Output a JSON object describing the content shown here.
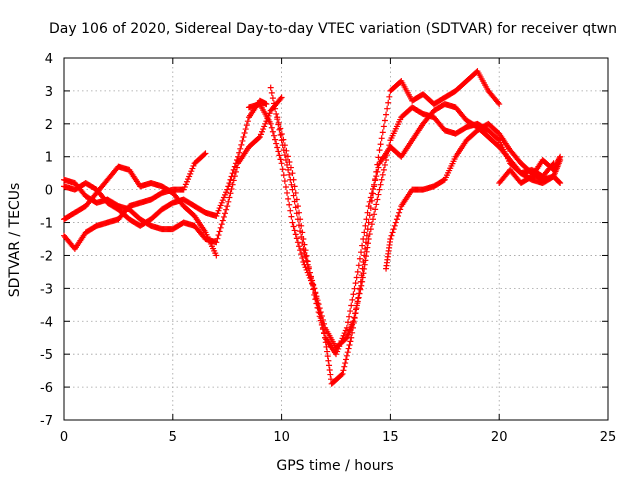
{
  "chart_data": {
    "type": "scatter",
    "title": "Day 106 of 2020, Sidereal Day-to-day VTEC variation (SDTVAR) for receiver qtwn",
    "xlabel": "GPS time / hours",
    "ylabel": "SDTVAR / TECUs",
    "xlim": [
      0,
      25
    ],
    "ylim": [
      -7,
      4
    ],
    "x_ticks": [
      "0",
      "5",
      "10",
      "15",
      "20",
      "25"
    ],
    "y_ticks": [
      "4",
      "3",
      "2",
      "1",
      "0",
      "-1",
      "-2",
      "-3",
      "-4",
      "-5",
      "-6",
      "-7"
    ],
    "grid": true,
    "marker": "+",
    "color": "#ff0000",
    "series": [
      {
        "x": [
          0,
          0.5,
          1,
          1.5,
          2,
          2.5,
          3,
          3.5,
          4,
          4.5,
          5,
          5.5,
          6,
          6.5,
          7,
          7.5,
          8,
          8.5,
          9,
          9.5,
          10
        ],
        "y": [
          0.3,
          0.2,
          -0.2,
          -0.4,
          -0.3,
          -0.5,
          -0.6,
          -0.9,
          -1.1,
          -1.2,
          -1.2,
          -1.0,
          -1.1,
          -1.5,
          -1.6,
          -0.5,
          0.8,
          1.3,
          1.6,
          2.4,
          2.8
        ]
      },
      {
        "x": [
          0,
          0.5,
          1,
          1.5,
          2,
          2.5,
          3,
          3.5,
          4,
          4.5,
          5,
          5.5,
          6,
          6.5
        ],
        "y": [
          -1.4,
          -1.8,
          -1.3,
          -1.1,
          -1.0,
          -0.9,
          -0.5,
          -0.4,
          -0.3,
          -0.1,
          0.0,
          0.0,
          0.8,
          1.1
        ]
      },
      {
        "x": [
          0,
          0.5,
          1,
          1.5,
          2,
          2.5,
          3,
          3.5,
          4,
          4.5,
          5,
          5.5,
          6,
          6.5,
          7
        ],
        "y": [
          -0.9,
          -0.7,
          -0.5,
          -0.1,
          0.3,
          0.7,
          0.6,
          0.1,
          0.2,
          0.1,
          -0.1,
          -0.5,
          -0.8,
          -1.3,
          -2.0
        ]
      },
      {
        "x": [
          0,
          0.5,
          1,
          1.5,
          2,
          2.5,
          3,
          3.5,
          4,
          4.5,
          5,
          5.5,
          6,
          6.5,
          7,
          7.5,
          8,
          8.5,
          9,
          9.3
        ],
        "y": [
          0.1,
          0.0,
          0.2,
          0.0,
          -0.4,
          -0.6,
          -0.9,
          -1.1,
          -0.9,
          -0.6,
          -0.4,
          -0.3,
          -0.5,
          -0.7,
          -0.8,
          0.0,
          1.0,
          2.2,
          2.7,
          2.6
        ]
      },
      {
        "x": [
          8.5,
          9,
          9.5,
          10,
          10.5,
          11,
          11.5,
          12,
          12.3,
          12.8,
          13.2,
          13.6,
          14,
          14.5,
          15,
          15.5,
          16,
          16.5,
          17,
          17.5,
          18,
          18.5,
          19,
          19.5,
          20
        ],
        "y": [
          2.5,
          2.6,
          2.0,
          0.8,
          -1.0,
          -2.2,
          -3.0,
          -4.5,
          -5.9,
          -5.6,
          -4.5,
          -3.0,
          -1.0,
          1.2,
          3.0,
          3.3,
          2.7,
          2.9,
          2.6,
          2.8,
          3.0,
          3.3,
          3.6,
          3.0,
          2.6
        ]
      },
      {
        "x": [
          9.5,
          10,
          10.5,
          11,
          11.5,
          12,
          12.5,
          13,
          13.3,
          13.7,
          14,
          14.5,
          15,
          15.5,
          16,
          16.5,
          17,
          17.5,
          18,
          18.5,
          19,
          19.5,
          20,
          20.5,
          21,
          21.5,
          22,
          22.5
        ],
        "y": [
          3.1,
          1.5,
          0.0,
          -1.8,
          -3.0,
          -4.2,
          -4.8,
          -4.5,
          -4.0,
          -2.8,
          -1.5,
          0.0,
          1.5,
          2.2,
          2.5,
          2.3,
          2.2,
          1.8,
          1.7,
          1.9,
          2.0,
          1.8,
          1.5,
          0.8,
          0.5,
          0.6,
          0.4,
          0.8
        ]
      },
      {
        "x": [
          9.8,
          10.5,
          11,
          11.5,
          12,
          12.5,
          13,
          13.5,
          14,
          14.5,
          15,
          15.5,
          16,
          16.5,
          17,
          17.5,
          18,
          18.5,
          19,
          19.5,
          20,
          20.5,
          21,
          21.5,
          22,
          22.5,
          22.8
        ],
        "y": [
          2.2,
          0.5,
          -1.5,
          -3.2,
          -4.5,
          -5.0,
          -4.2,
          -2.5,
          -0.5,
          0.8,
          1.3,
          1.0,
          1.5,
          2.0,
          2.4,
          2.6,
          2.5,
          2.1,
          1.9,
          1.6,
          1.3,
          0.9,
          0.5,
          0.3,
          0.2,
          0.4,
          0.9
        ]
      },
      {
        "x": [
          14.8,
          15,
          15.5,
          16,
          16.5,
          17,
          17.5,
          18,
          18.5,
          19,
          19.5,
          20,
          20.5,
          21,
          21.5,
          22,
          22.5,
          22.8
        ],
        "y": [
          -2.4,
          -1.5,
          -0.5,
          0.0,
          0.0,
          0.1,
          0.3,
          1.0,
          1.5,
          1.8,
          2.0,
          1.7,
          1.2,
          0.8,
          0.5,
          0.3,
          0.4,
          0.2
        ]
      },
      {
        "x": [
          20,
          20.5,
          21,
          21.5,
          22,
          22.5,
          22.8
        ],
        "y": [
          0.2,
          0.6,
          0.2,
          0.4,
          0.9,
          0.6,
          1.0
        ]
      }
    ]
  }
}
